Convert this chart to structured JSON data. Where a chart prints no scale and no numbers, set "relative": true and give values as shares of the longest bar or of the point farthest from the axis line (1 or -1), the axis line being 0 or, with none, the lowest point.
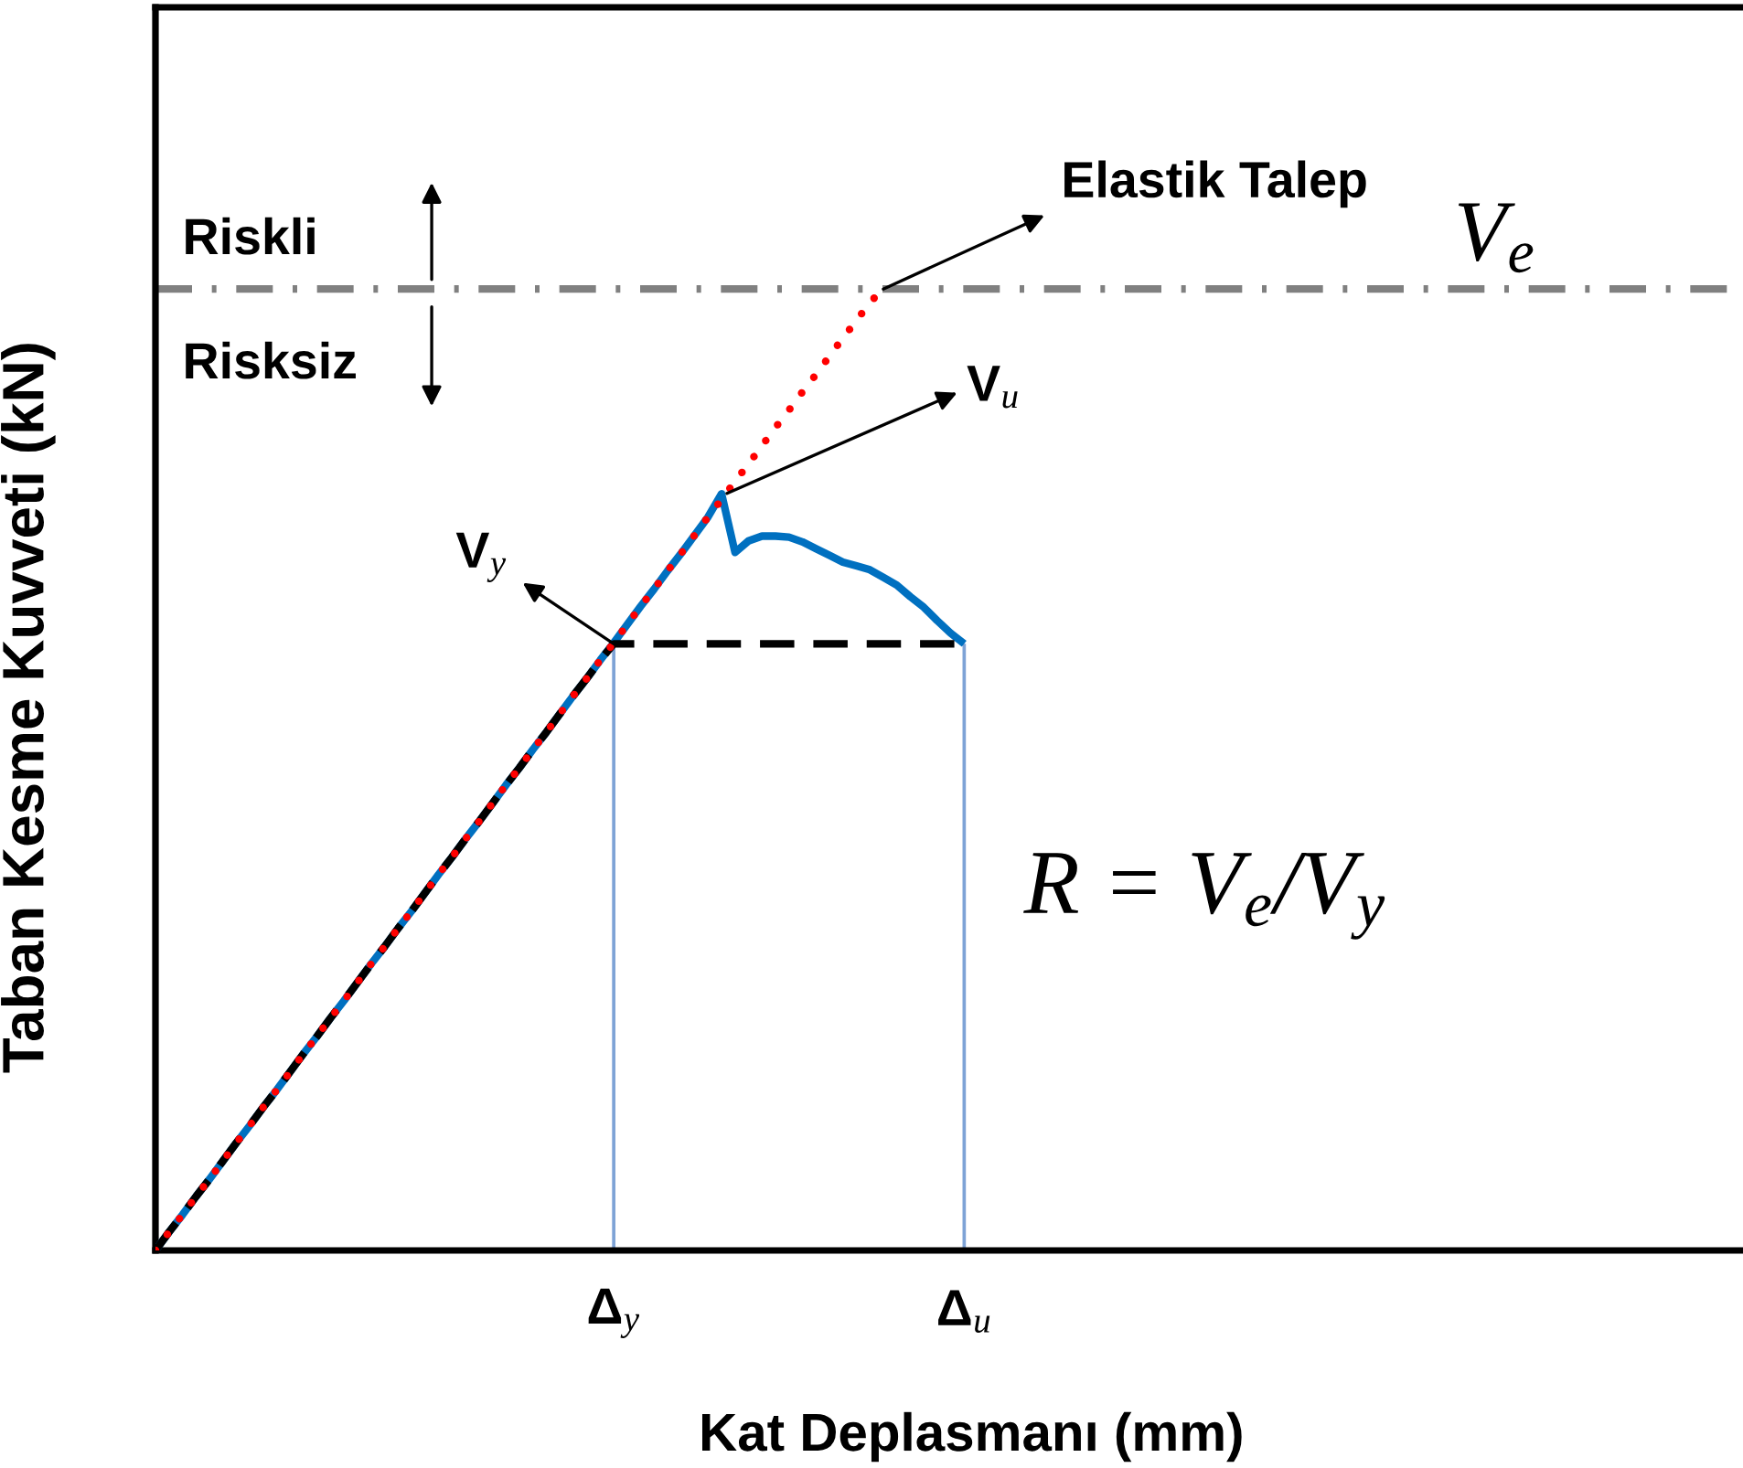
{
  "chart_data": {
    "type": "line",
    "relative": true,
    "xlabel": "Kat Deplasmanı (mm)",
    "ylabel": "Taban Kesme Kuvveti (kN)",
    "tick_labels": "x",
    "categories": [
      null,
      null,
      null,
      null,
      null,
      null,
      null,
      null,
      null,
      null,
      null,
      null,
      null,
      null,
      null,
      null,
      null,
      null,
      null,
      null,
      null,
      null,
      null,
      null,
      null,
      null,
      null,
      null,
      null,
      null,
      null,
      null,
      null,
      null,
      "Δ$_{y}$",
      null,
      null,
      null,
      null,
      null,
      null,
      null,
      null,
      null,
      null,
      null,
      null,
      null,
      null,
      null,
      null,
      null,
      null,
      null,
      null,
      null,
      null,
      null,
      null,
      null,
      "Δ$_{u}$"
    ],
    "series": [
      {
        "type": "bar",
        "color": "#7ea3d6",
        "values": [
          null,
          null,
          null,
          null,
          null,
          null,
          null,
          null,
          null,
          null,
          null,
          null,
          null,
          null,
          null,
          null,
          null,
          null,
          null,
          null,
          null,
          null,
          null,
          null,
          null,
          null,
          null,
          null,
          null,
          null,
          null,
          null,
          null,
          null,
          0.631,
          null,
          null,
          null,
          null,
          null,
          null,
          null,
          null,
          null,
          null,
          null,
          null,
          null,
          null,
          null,
          null,
          null,
          null,
          null,
          null,
          null,
          null,
          null,
          null,
          null,
          0.631
        ]
      },
      {
        "color": "#0070c0",
        "line_style": "solid",
        "values": [
          0,
          0.019,
          0.037,
          0.056,
          0.074,
          0.093,
          0.112,
          0.13,
          0.149,
          0.167,
          0.186,
          0.205,
          0.223,
          0.242,
          0.26,
          0.279,
          0.298,
          0.316,
          0.335,
          0.353,
          0.372,
          0.391,
          0.409,
          0.428,
          0.446,
          0.465,
          0.484,
          0.502,
          0.521,
          0.539,
          0.558,
          0.577,
          0.595,
          0.614,
          0.632,
          0.651,
          0.67,
          0.688,
          0.707,
          0.725,
          0.744,
          0.763,
          0.787,
          0.726,
          0.738,
          0.743,
          0.743,
          0.742,
          0.737,
          0.73,
          0.723,
          0.716,
          0.712,
          0.708,
          0.7,
          0.692,
          0.68,
          0.669,
          0.655,
          0.642,
          0.631
        ]
      },
      {
        "color": "#000000",
        "line_style": "dashed",
        "values": [
          0,
          0.019,
          0.037,
          0.056,
          0.074,
          0.093,
          0.112,
          0.13,
          0.149,
          0.167,
          0.186,
          0.205,
          0.223,
          0.242,
          0.26,
          0.279,
          0.298,
          0.316,
          0.335,
          0.353,
          0.372,
          0.391,
          0.409,
          0.428,
          0.446,
          0.465,
          0.484,
          0.502,
          0.521,
          0.539,
          0.558,
          0.577,
          0.595,
          0.614,
          0.631,
          0.631,
          0.631,
          0.631,
          0.631,
          0.631,
          0.631,
          0.631,
          0.631,
          0.631,
          0.631,
          0.631,
          0.631,
          0.631,
          0.631,
          0.631,
          0.631,
          0.631,
          0.631,
          0.631,
          0.631,
          0.631,
          0.631,
          0.631,
          0.631,
          0.631,
          0.631
        ]
      },
      {
        "color": "#ff0000",
        "line_style": "dotted",
        "values": [
          0,
          0.019,
          0.037,
          0.056,
          0.074,
          0.093,
          0.112,
          0.13,
          0.149,
          0.167,
          0.186,
          0.205,
          0.223,
          0.242,
          0.26,
          0.279,
          0.298,
          0.316,
          0.335,
          0.353,
          0.372,
          0.391,
          0.409,
          0.428,
          0.446,
          0.465,
          0.484,
          0.502,
          0.521,
          0.539,
          0.558,
          0.577,
          0.595,
          0.614,
          0.632,
          0.651,
          0.67,
          0.688,
          0.707,
          0.725,
          0.744,
          0.763,
          0.781,
          0.8,
          0.818,
          0.837,
          0.856,
          0.874,
          0.893,
          0.911,
          0.93,
          0.949,
          0.967,
          0.986,
          1.0,
          null,
          null,
          null,
          null,
          null,
          null
        ]
      }
    ],
    "ref_lines": [
      {
        "axis": "y",
        "value": 1.0,
        "label": "V$_{e}$",
        "color": "#808080",
        "line_style": "dashdot"
      }
    ],
    "annotations": [
      {
        "text": "Elastik Talep",
        "y": 1.0
      },
      "V$_{u}$",
      {
        "text": "V$_{y}$",
        "x": "Δ$_{y}$",
        "y": 0.631
      },
      "Riskli",
      "Risksiz",
      "R = V$_{e}$/V$_{y}$"
    ]
  }
}
